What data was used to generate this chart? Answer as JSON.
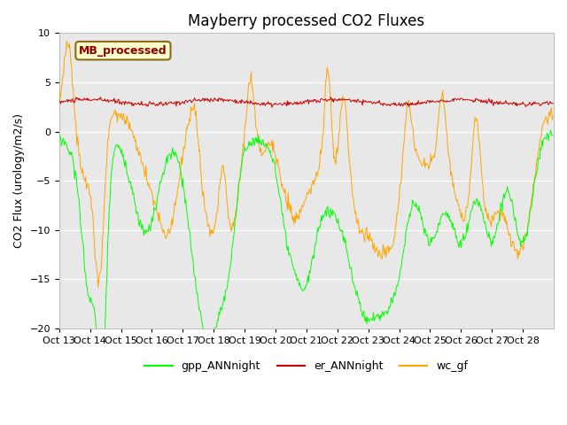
{
  "title": "Mayberry processed CO2 Fluxes",
  "ylabel": "CO2 Flux (urology/m2/s)",
  "ylim": [
    -20,
    10
  ],
  "yticks": [
    -20,
    -15,
    -10,
    -5,
    0,
    5,
    10
  ],
  "xtick_labels": [
    "Oct 13",
    "Oct 14",
    "Oct 15",
    "Oct 16",
    "Oct 17",
    "Oct 18",
    "Oct 19",
    "Oct 20",
    "Oct 21",
    "Oct 22",
    "Oct 23",
    "Oct 24",
    "Oct 25",
    "Oct 26",
    "Oct 27",
    "Oct 28"
  ],
  "legend_label": "MB_processed",
  "legend_text_color": "#8B0000",
  "legend_box_facecolor": "#FFFFCC",
  "legend_box_edgecolor": "#8B6914",
  "background_color": "#E8E8E8",
  "line_gpp_color": "#00FF00",
  "line_er_color": "#CC0000",
  "line_wc_color": "#FFA500",
  "title_fontsize": 12,
  "axis_label_fontsize": 9,
  "tick_fontsize": 8,
  "legend_fontsize": 9,
  "n_points": 672,
  "days": 16
}
